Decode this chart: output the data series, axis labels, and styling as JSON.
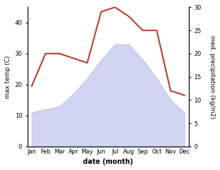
{
  "months": [
    "Jan",
    "Feb",
    "Mar",
    "Apr",
    "May",
    "Jun",
    "Jul",
    "Aug",
    "Sep",
    "Oct",
    "Nov",
    "Dec"
  ],
  "max_temp": [
    11,
    12,
    13,
    17,
    22,
    28,
    33,
    33,
    28,
    22,
    15,
    11
  ],
  "precipitation": [
    13,
    20,
    20,
    19,
    18,
    29,
    30,
    28,
    25,
    25,
    12,
    11
  ],
  "temp_color_fill": "#aab4e8",
  "temp_fill_alpha": 0.55,
  "precip_line_color": "#c0392b",
  "temp_ylim": [
    0,
    45
  ],
  "precip_ylim": [
    0,
    30
  ],
  "temp_yticks": [
    0,
    10,
    20,
    30,
    40
  ],
  "precip_yticks": [
    0,
    5,
    10,
    15,
    20,
    25,
    30
  ],
  "ylabel_left": "max temp (C)",
  "ylabel_right": "med. precipitation (kg/m2)",
  "xlabel": "date (month)",
  "background_color": "#ffffff",
  "fig_width": 3.18,
  "fig_height": 2.47
}
